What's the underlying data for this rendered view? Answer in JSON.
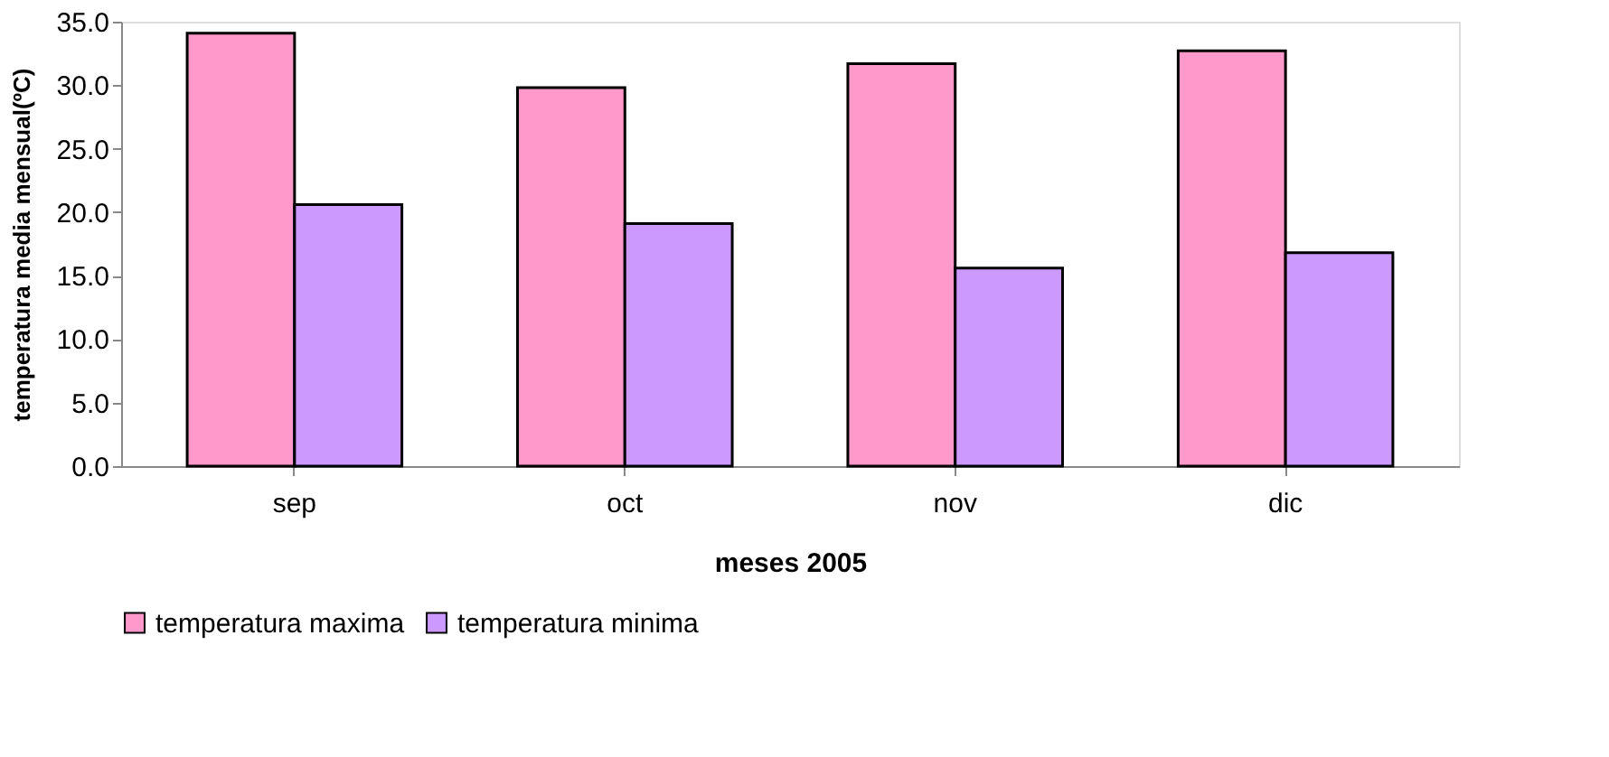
{
  "chart_data": {
    "type": "bar",
    "xlabel": "meses 2005",
    "ylabel": "temperatura media mensual(ºC)",
    "categories": [
      "sep",
      "oct",
      "nov",
      "dic"
    ],
    "series": [
      {
        "name": "temperatura maxima",
        "color": "#ff99cc",
        "values": [
          34.1,
          29.8,
          31.7,
          32.7
        ]
      },
      {
        "name": "temperatura minima",
        "color": "#cc99ff",
        "values": [
          20.6,
          19.1,
          15.6,
          16.8
        ]
      }
    ],
    "ylim": [
      0,
      35
    ],
    "yticks": [
      {
        "value": 0,
        "label": "0.0"
      },
      {
        "value": 5,
        "label": "5.0"
      },
      {
        "value": 10,
        "label": "10.0"
      },
      {
        "value": 15,
        "label": "15.0"
      },
      {
        "value": 20,
        "label": "20.0"
      },
      {
        "value": 25,
        "label": "25.0"
      },
      {
        "value": 30,
        "label": "30.0"
      },
      {
        "value": 35,
        "label": "35.0"
      }
    ],
    "grid": false,
    "legend": "bottom"
  }
}
